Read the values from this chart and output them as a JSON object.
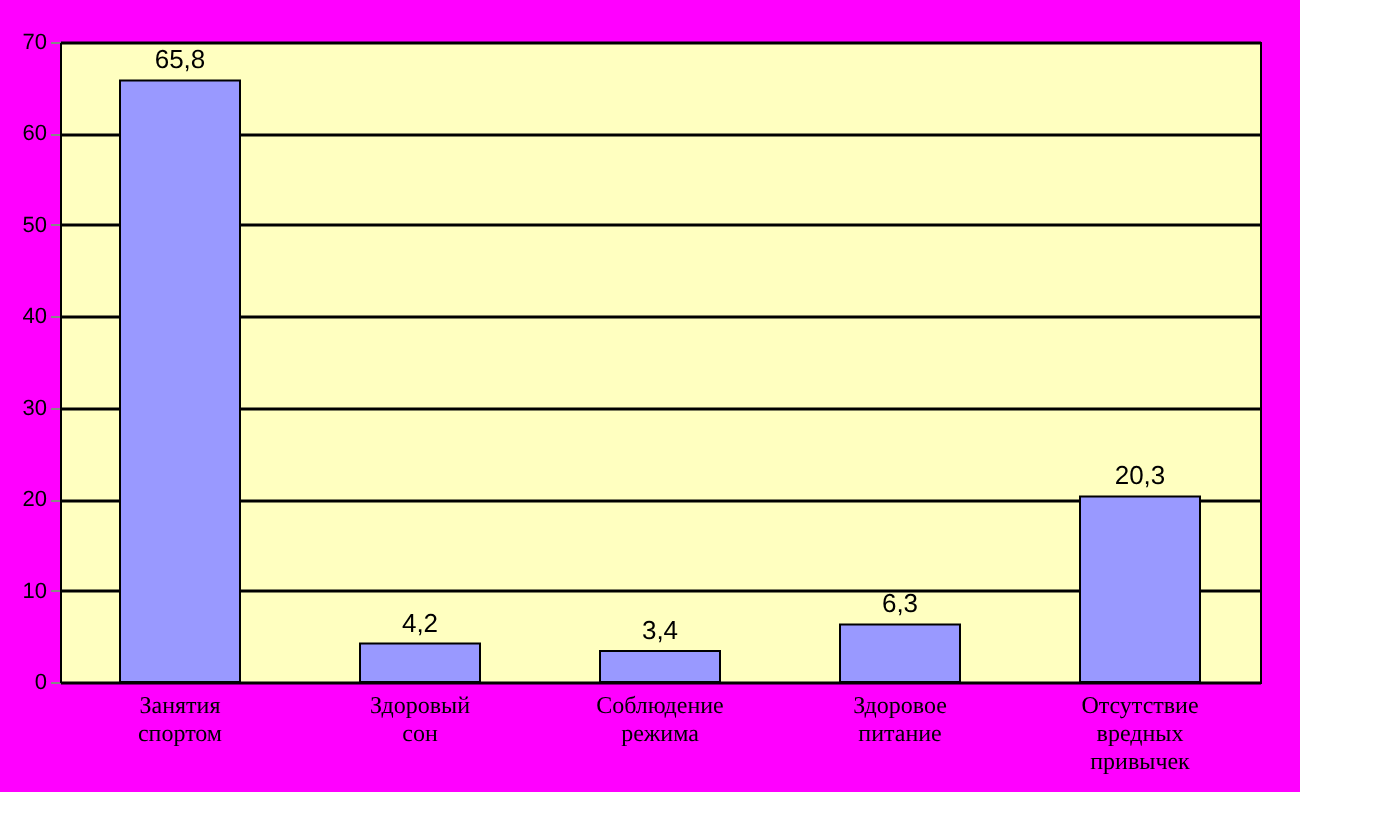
{
  "chart_data": {
    "type": "bar",
    "categories": [
      "Занятия спортом",
      "Здоровый сон",
      "Соблюдение режима",
      "Здоровое питание",
      "Отсутствие вредных привычек"
    ],
    "values": [
      65.8,
      4.2,
      3.4,
      6.3,
      20.3
    ],
    "value_labels": [
      "65,8",
      "4,2",
      "3,4",
      "6,3",
      "20,3"
    ],
    "color": "#9999ff",
    "ylim": [
      0,
      70
    ],
    "yticks": [
      0,
      10,
      20,
      30,
      40,
      50,
      60,
      70
    ],
    "grid": "y"
  }
}
